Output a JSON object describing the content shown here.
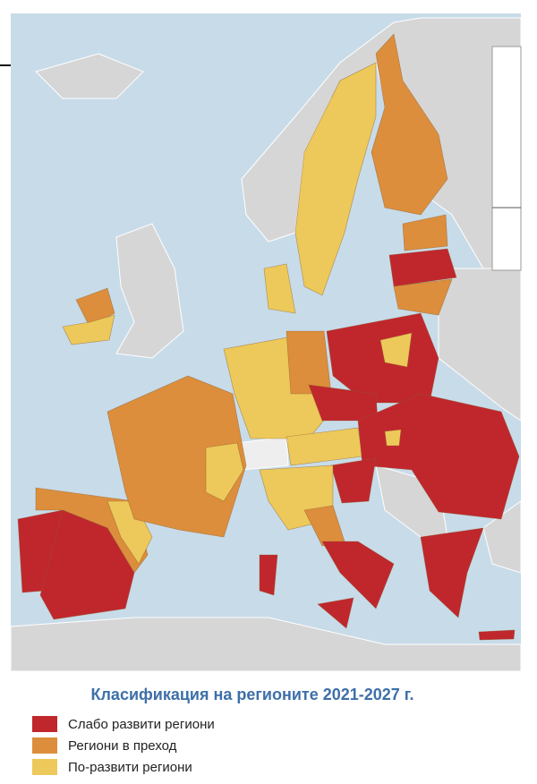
{
  "title": "Класификация на регионите 2021-2027 г.",
  "legend": [
    {
      "label": "Слабо развити региони",
      "color": "#c0272d"
    },
    {
      "label": "Региони в преход",
      "color": "#dc8e3c"
    },
    {
      "label": "По-развити региони",
      "color": "#ecc95a"
    }
  ]
}
